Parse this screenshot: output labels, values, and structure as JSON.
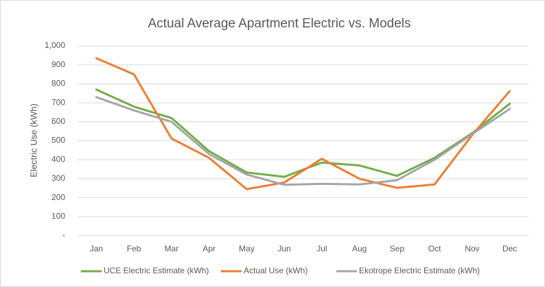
{
  "chart_data": {
    "type": "line",
    "title": "Actual Average Apartment Electric vs. Models",
    "y_axis_label": "Electric Use (kWh)",
    "categories": [
      "Jan",
      "Feb",
      "Mar",
      "Apr",
      "May",
      "Jun",
      "Jul",
      "Aug",
      "Sep",
      "Oct",
      "Nov",
      "Dec"
    ],
    "series": [
      {
        "name": "UCE Electric Estimate (kWh)",
        "color": "#70ad47",
        "values": [
          770,
          680,
          620,
          445,
          333,
          310,
          385,
          370,
          315,
          410,
          540,
          695
        ]
      },
      {
        "name": "Actual Use (kWh)",
        "color": "#ed7d31",
        "values": [
          935,
          850,
          512,
          410,
          245,
          280,
          405,
          300,
          252,
          270,
          530,
          762
        ]
      },
      {
        "name": "Ekotrope Electric Estimate (kWh)",
        "color": "#a5a5a5",
        "values": [
          730,
          660,
          600,
          430,
          322,
          268,
          273,
          270,
          292,
          400,
          535,
          668
        ]
      }
    ],
    "ylim": [
      0,
      1000
    ],
    "yticks": [
      {
        "value": 0,
        "label": "-"
      },
      100,
      200,
      300,
      400,
      500,
      600,
      700,
      800,
      900,
      {
        "value": 1000,
        "label": "1,000"
      }
    ],
    "grid": true,
    "legend": "bottom"
  }
}
